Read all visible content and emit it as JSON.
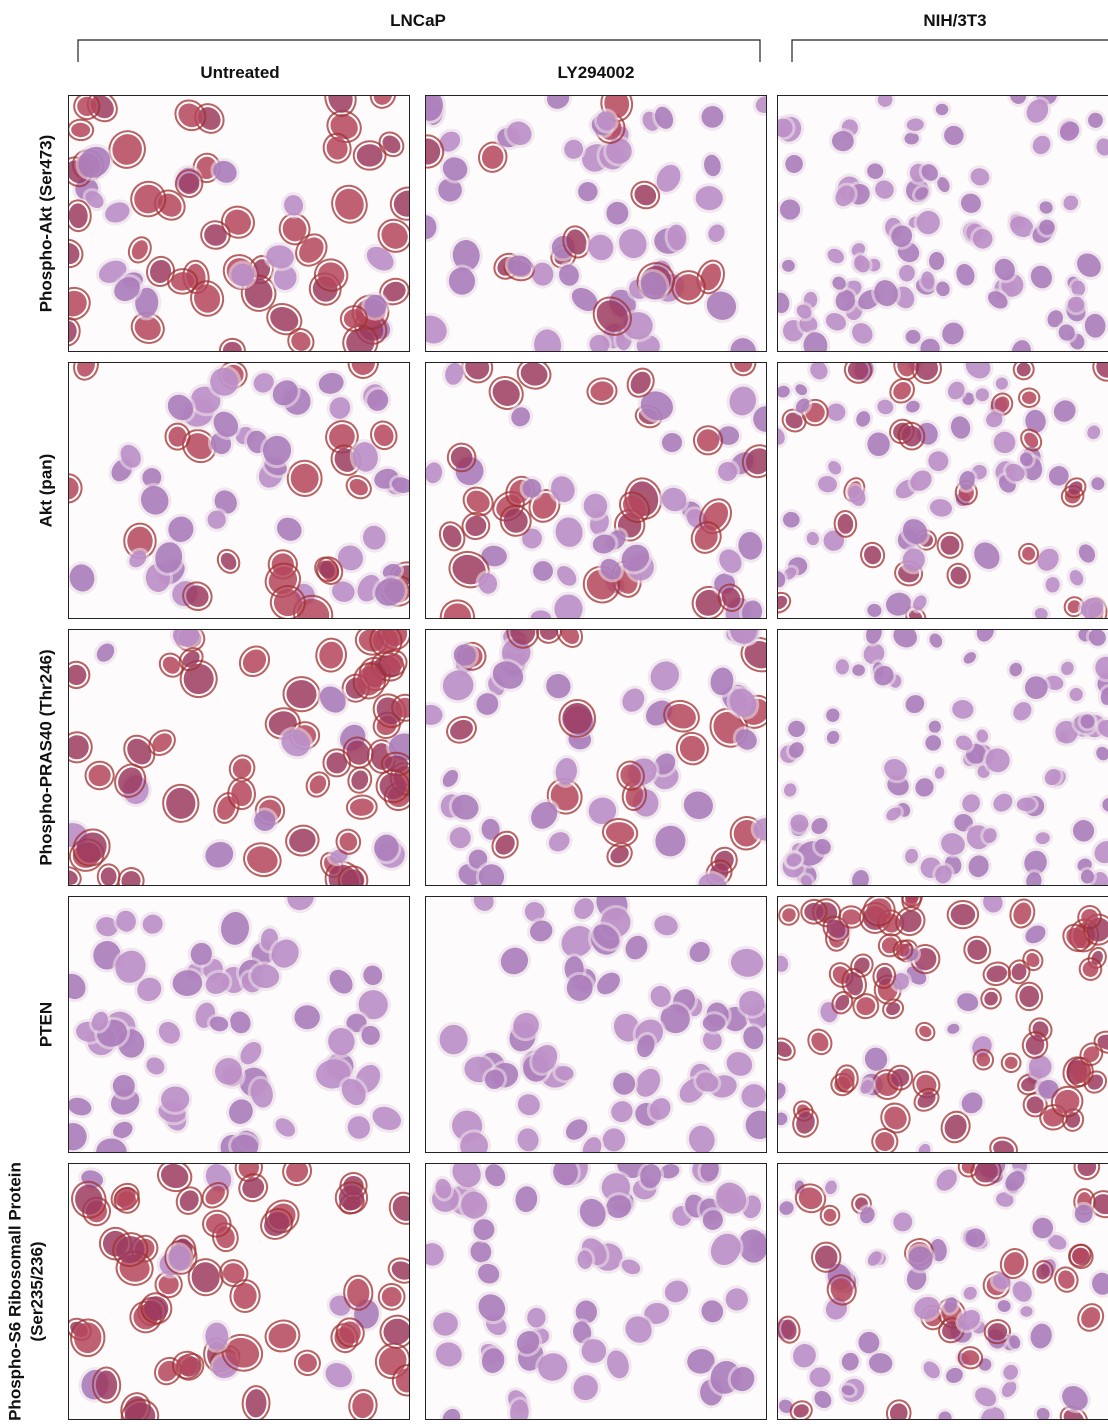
{
  "groups": [
    {
      "label": "LNCaP"
    },
    {
      "label": "NIH/3T3"
    }
  ],
  "columns": [
    "Untreated",
    "LY294002"
  ],
  "rows": [
    {
      "lines": [
        "Phospho-Akt (Ser473)"
      ]
    },
    {
      "lines": [
        "Akt (pan)"
      ]
    },
    {
      "lines": [
        "Phospho-PRAS40 (Thr246)"
      ]
    },
    {
      "lines": [
        "PTEN"
      ]
    },
    {
      "lines": [
        "Phospho-S6 Ribosomall Protein",
        "(Ser235/236)"
      ]
    }
  ]
}
